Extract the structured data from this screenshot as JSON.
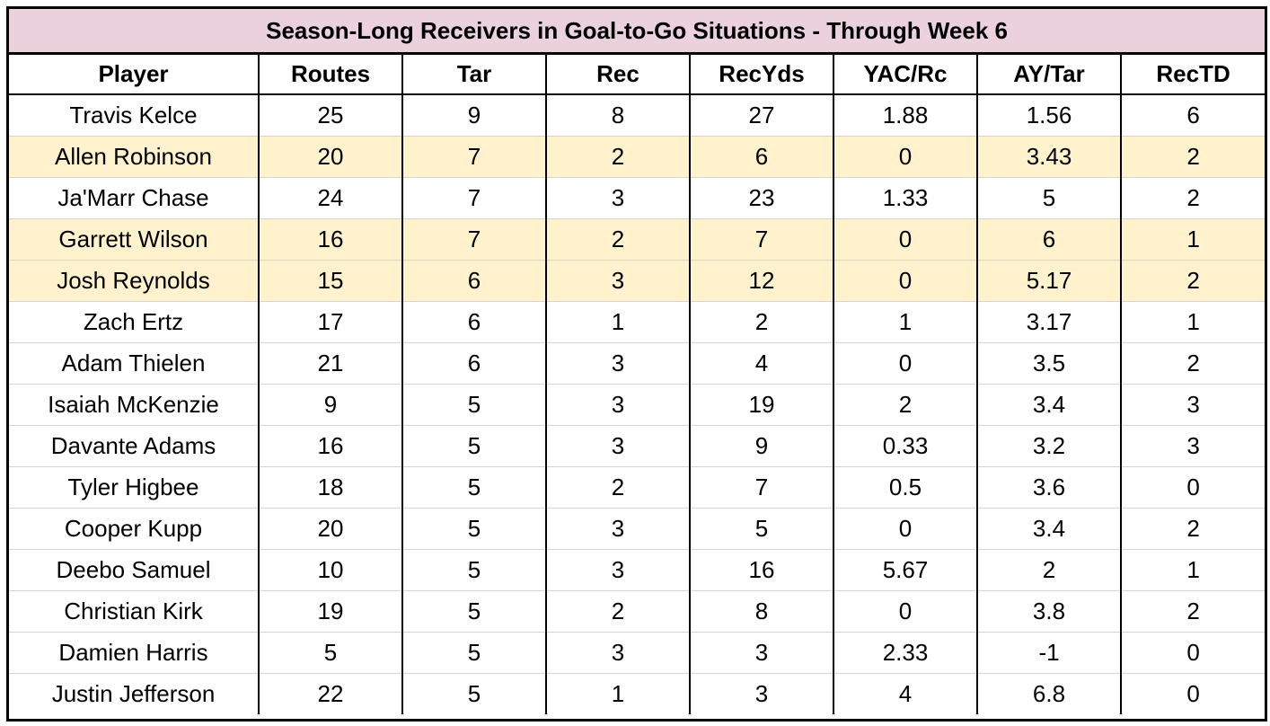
{
  "colors": {
    "title_bg": "#ead1dc",
    "highlight_bg": "#fff2cc",
    "row_bg": "#ffffff",
    "border": "#000000"
  },
  "table": {
    "title": "Season-Long Receivers in Goal-to-Go Situations - Through Week 6",
    "headers": [
      "Player",
      "Routes",
      "Tar",
      "Rec",
      "RecYds",
      "YAC/Rc",
      "AY/Tar",
      "RecTD"
    ],
    "rows": [
      {
        "highlight": false,
        "cells": [
          "Travis Kelce",
          "25",
          "9",
          "8",
          "27",
          "1.88",
          "1.56",
          "6"
        ]
      },
      {
        "highlight": true,
        "cells": [
          "Allen Robinson",
          "20",
          "7",
          "2",
          "6",
          "0",
          "3.43",
          "2"
        ]
      },
      {
        "highlight": false,
        "cells": [
          "Ja'Marr Chase",
          "24",
          "7",
          "3",
          "23",
          "1.33",
          "5",
          "2"
        ]
      },
      {
        "highlight": true,
        "cells": [
          "Garrett Wilson",
          "16",
          "7",
          "2",
          "7",
          "0",
          "6",
          "1"
        ]
      },
      {
        "highlight": true,
        "cells": [
          "Josh Reynolds",
          "15",
          "6",
          "3",
          "12",
          "0",
          "5.17",
          "2"
        ]
      },
      {
        "highlight": false,
        "cells": [
          "Zach Ertz",
          "17",
          "6",
          "1",
          "2",
          "1",
          "3.17",
          "1"
        ]
      },
      {
        "highlight": false,
        "cells": [
          "Adam Thielen",
          "21",
          "6",
          "3",
          "4",
          "0",
          "3.5",
          "2"
        ]
      },
      {
        "highlight": false,
        "cells": [
          "Isaiah McKenzie",
          "9",
          "5",
          "3",
          "19",
          "2",
          "3.4",
          "3"
        ]
      },
      {
        "highlight": false,
        "cells": [
          "Davante Adams",
          "16",
          "5",
          "3",
          "9",
          "0.33",
          "3.2",
          "3"
        ]
      },
      {
        "highlight": false,
        "cells": [
          "Tyler Higbee",
          "18",
          "5",
          "2",
          "7",
          "0.5",
          "3.6",
          "0"
        ]
      },
      {
        "highlight": false,
        "cells": [
          "Cooper Kupp",
          "20",
          "5",
          "3",
          "5",
          "0",
          "3.4",
          "2"
        ]
      },
      {
        "highlight": false,
        "cells": [
          "Deebo Samuel",
          "10",
          "5",
          "3",
          "16",
          "5.67",
          "2",
          "1"
        ]
      },
      {
        "highlight": false,
        "cells": [
          "Christian Kirk",
          "19",
          "5",
          "2",
          "8",
          "0",
          "3.8",
          "2"
        ]
      },
      {
        "highlight": false,
        "cells": [
          "Damien Harris",
          "5",
          "5",
          "3",
          "3",
          "2.33",
          "-1",
          "0"
        ]
      },
      {
        "highlight": false,
        "cells": [
          "Justin Jefferson",
          "22",
          "5",
          "1",
          "3",
          "4",
          "6.8",
          "0"
        ]
      }
    ]
  }
}
